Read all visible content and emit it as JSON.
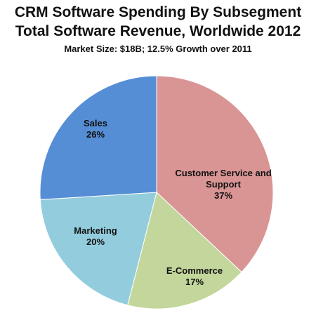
{
  "chart_data": {
    "type": "pie",
    "title": "CRM Software Spending By Subsegment",
    "title_line2": "Total Software Revenue, Worldwide 2012",
    "subtitle": "Market Size: $18B; 12.5% Growth over 2011",
    "slices": [
      {
        "label_lines": [
          "Customer Service and",
          "Support"
        ],
        "percent_text": "37%",
        "value": 37,
        "color": "#d99594"
      },
      {
        "label_lines": [
          "E-Commerce"
        ],
        "percent_text": "17%",
        "value": 17,
        "color": "#c3d69b"
      },
      {
        "label_lines": [
          "Marketing"
        ],
        "percent_text": "20%",
        "value": 20,
        "color": "#93cddd"
      },
      {
        "label_lines": [
          "Sales"
        ],
        "percent_text": "26%",
        "value": 26,
        "color": "#558ed5"
      }
    ],
    "legend": "none"
  }
}
